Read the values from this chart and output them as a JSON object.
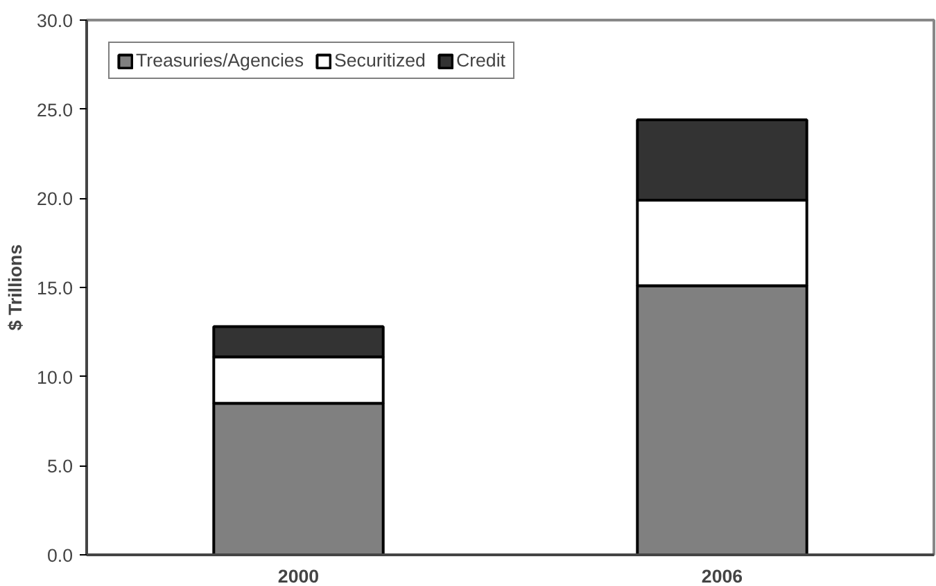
{
  "chart_data": {
    "type": "bar",
    "stacked": true,
    "ylabel": "$ Trillions",
    "categories": [
      "2000",
      "2006"
    ],
    "series": [
      {
        "name": "Treasuries/Agencies",
        "color": "#808080",
        "values": [
          8.5,
          15.1
        ]
      },
      {
        "name": "Securitized",
        "color": "#ffffff",
        "values": [
          2.6,
          4.8
        ]
      },
      {
        "name": "Credit",
        "color": "#333333",
        "values": [
          1.7,
          4.5
        ]
      }
    ],
    "ylim": [
      0,
      30
    ],
    "yticks": [
      {
        "value": 0,
        "label": "0.0"
      },
      {
        "value": 5,
        "label": "5.0"
      },
      {
        "value": 10,
        "label": "10.0"
      },
      {
        "value": 15,
        "label": "15.0"
      },
      {
        "value": 20,
        "label": "20.0"
      },
      {
        "value": 25,
        "label": "25.0"
      },
      {
        "value": 30,
        "label": "30.0"
      }
    ],
    "grid": false,
    "legend": "top left"
  }
}
